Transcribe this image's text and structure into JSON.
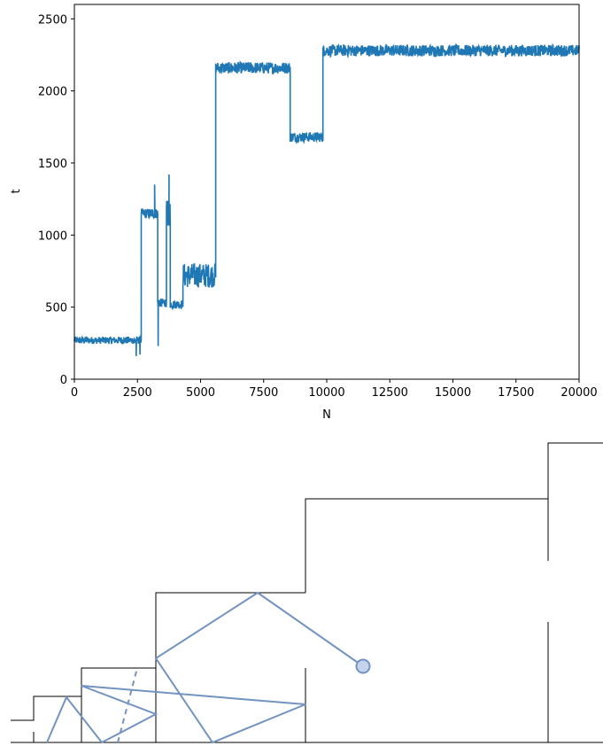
{
  "chart_data": {
    "type": "line",
    "xlabel": "N",
    "ylabel": "t",
    "xlim": [
      0,
      20000
    ],
    "ylim": [
      0,
      2600
    ],
    "xticks": [
      0,
      2500,
      5000,
      7500,
      10000,
      12500,
      15000,
      17500,
      20000
    ],
    "yticks": [
      0,
      500,
      1000,
      1500,
      2000,
      2500
    ],
    "grid": false,
    "series_color": "#1f77b4",
    "segments": [
      {
        "x_start": 0,
        "x_end": 2650,
        "level": 270,
        "noise": 25
      },
      {
        "x_start": 2650,
        "x_end": 3300,
        "level": 1150,
        "noise": 35
      },
      {
        "x_start": 3300,
        "x_end": 3650,
        "level": 530,
        "noise": 30
      },
      {
        "x_start": 3650,
        "x_end": 3800,
        "level": 1150,
        "noise": 90
      },
      {
        "x_start": 3800,
        "x_end": 4300,
        "level": 520,
        "noise": 30
      },
      {
        "x_start": 4300,
        "x_end": 5600,
        "level": 720,
        "noise": 85
      },
      {
        "x_start": 5600,
        "x_end": 8550,
        "level": 2160,
        "noise": 40
      },
      {
        "x_start": 8550,
        "x_end": 9850,
        "level": 1680,
        "noise": 35
      },
      {
        "x_start": 9850,
        "x_end": 20000,
        "level": 2280,
        "noise": 40
      }
    ],
    "spikes": [
      {
        "x": 2450,
        "y": 160
      },
      {
        "x": 2600,
        "y": 170
      },
      {
        "x": 3180,
        "y": 1350
      },
      {
        "x": 3320,
        "y": 230
      },
      {
        "x": 3750,
        "y": 1420
      }
    ]
  },
  "diagram": {
    "frame_color": "#000000",
    "path_color": "#7393c2",
    "ball_fill": "#c6d3ec"
  }
}
